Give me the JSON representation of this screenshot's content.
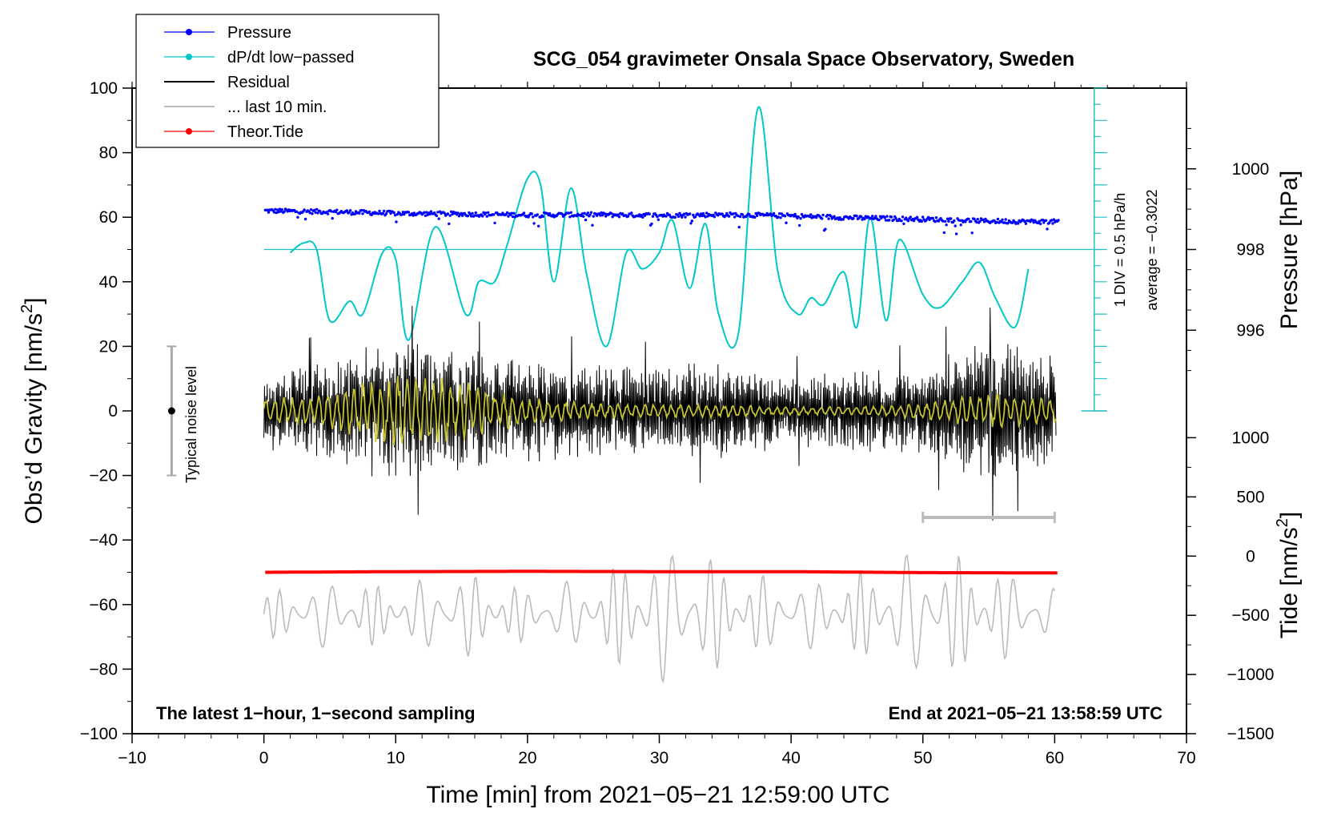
{
  "chart_data": {
    "type": "line",
    "title": "SCG_054 gravimeter Onsala Space Observatory, Sweden",
    "xlabel": "Time [min] from 2021−05−21 12:59:00 UTC",
    "ylabel_left": "Obs’d Gravity [nm/s",
    "ylabel_left_sup": "2",
    "ylabel_left_close": "]",
    "ylabel_right_pressure": "Pressure [hPa]",
    "ylabel_right_tide": "Tide [nm/s",
    "ylabel_right_tide_sup": "2",
    "ylabel_right_tide_close": "]",
    "xlim": [
      -10,
      70
    ],
    "ylim": [
      -100,
      100
    ],
    "x_ticks": [
      {
        "v": -10,
        "label": "−10"
      },
      {
        "v": 0,
        "label": "0"
      },
      {
        "v": 10,
        "label": "10"
      },
      {
        "v": 20,
        "label": "20"
      },
      {
        "v": 30,
        "label": "30"
      },
      {
        "v": 40,
        "label": "40"
      },
      {
        "v": 50,
        "label": "50"
      },
      {
        "v": 60,
        "label": "60"
      },
      {
        "v": 70,
        "label": "70"
      }
    ],
    "y_ticks": [
      {
        "v": 100,
        "label": "100"
      },
      {
        "v": 80,
        "label": "80"
      },
      {
        "v": 60,
        "label": "60"
      },
      {
        "v": 40,
        "label": "40"
      },
      {
        "v": 20,
        "label": "20"
      },
      {
        "v": 0,
        "label": "0"
      },
      {
        "v": -20,
        "label": "−20"
      },
      {
        "v": -40,
        "label": "−40"
      },
      {
        "v": -60,
        "label": "−60"
      },
      {
        "v": -80,
        "label": "−80"
      },
      {
        "v": -100,
        "label": "−100"
      }
    ],
    "pressure_axis": {
      "ticks": [
        {
          "v": 1000,
          "label": "1000"
        },
        {
          "v": 998,
          "label": "998"
        },
        {
          "v": 996,
          "label": "996"
        }
      ],
      "mapping": {
        "hpa": [
          996,
          1000
        ],
        "gravity": [
          25,
          75
        ]
      }
    },
    "tide_axis": {
      "ticks": [
        {
          "v": 1000,
          "label": "1000"
        },
        {
          "v": 500,
          "label": "500"
        },
        {
          "v": 0,
          "label": "0"
        },
        {
          "v": -500,
          "label": "−500"
        },
        {
          "v": -1000,
          "label": "−1000"
        },
        {
          "v": -1500,
          "label": "−1500"
        }
      ],
      "mapping": {
        "tide": [
          -1500,
          1000
        ],
        "gravity": [
          -100,
          -8.3
        ]
      }
    },
    "legend": [
      {
        "label": "Pressure",
        "color": "#0000ff",
        "marker": true
      },
      {
        "label": "dP/dt low−passed",
        "color": "#00c8c8",
        "marker": true
      },
      {
        "label": "Residual",
        "color": "#000000",
        "marker": false
      },
      {
        "label": "... last 10 min.",
        "color": "#bbbbbb",
        "marker": false
      },
      {
        "label": "Theor.Tide",
        "color": "#ff0000",
        "marker": true
      }
    ],
    "dpdt_scale": {
      "label_div": "1 DIV = 0.5 hPa/h",
      "label_avg": "average = −0.3022",
      "x": 63,
      "range": [
        0,
        100
      ],
      "zero_level": 50
    },
    "noise_bar": {
      "label": "Typical noise level",
      "x": -7,
      "center": 0,
      "half_range": 20
    },
    "last10_bar": {
      "x_from": 50,
      "x_to": 60,
      "y": -33
    },
    "notes": {
      "left": "The latest 1−hour, 1−second sampling",
      "right": "End at 2021−05−21 13:58:59 UTC"
    },
    "series": [
      {
        "name": "Pressure",
        "color": "#0000ff",
        "x": [
          0,
          5,
          10,
          15,
          20,
          25,
          30,
          35,
          40,
          45,
          50,
          55,
          60
        ],
        "values": [
          62,
          61.7,
          61.2,
          61,
          60.7,
          60.8,
          60.6,
          60.8,
          60.4,
          59.8,
          59.4,
          58.8,
          58.6
        ]
      },
      {
        "name": "dP/dt low-passed",
        "color": "#00c8c8",
        "x": [
          2,
          3,
          4,
          5,
          6.5,
          7.5,
          9,
          10,
          11,
          13,
          15.3,
          16.3,
          17.5,
          18.5,
          20,
          21,
          22,
          23.3,
          24.5,
          26,
          27.5,
          28.7,
          30,
          31,
          32.3,
          33.5,
          34.5,
          36,
          37.5,
          39,
          40.5,
          41.5,
          42.5,
          44,
          45,
          46,
          47.2,
          48.2,
          50,
          51.3,
          53,
          54.3,
          55.5,
          57,
          58
        ],
        "values": [
          49,
          52,
          50,
          28,
          34,
          30,
          49,
          47,
          22,
          57,
          30,
          40,
          40,
          52,
          72,
          70,
          40,
          69,
          42,
          20,
          49,
          44,
          49,
          59,
          38,
          58,
          30,
          24,
          94,
          43,
          30,
          35,
          33,
          43,
          26,
          60,
          28,
          53,
          36,
          32,
          40,
          46,
          35,
          26,
          44
        ]
      },
      {
        "name": "Residual",
        "color": "#000000",
        "envelope_x": [
          0,
          5,
          10,
          15,
          20,
          25,
          30,
          35,
          40,
          45,
          50,
          55,
          60
        ],
        "envelope_amp": [
          8,
          12,
          16,
          14,
          11,
          11,
          10,
          11,
          8,
          9,
          10,
          17,
          12
        ]
      },
      {
        "name": "Residual (filtered)",
        "color": "#cccc33",
        "envelope_x": [
          0,
          5,
          10,
          15,
          20,
          25,
          30,
          35,
          40,
          45,
          50,
          55,
          60
        ],
        "envelope_amp": [
          3,
          4,
          9,
          7,
          3,
          2,
          1.5,
          1.5,
          1,
          1,
          2,
          4,
          3
        ]
      },
      {
        "name": "Theor.Tide",
        "color": "#ff0000",
        "x": [
          0,
          10,
          20,
          30,
          40,
          50,
          60
        ],
        "values": [
          -50,
          -49.8,
          -49.7,
          -49.8,
          -49.8,
          -50.1,
          -50.2
        ]
      },
      {
        "name": "... last 10 min.",
        "color": "#bbbbbb",
        "envelope_x": [
          0,
          5,
          10,
          15,
          20,
          25,
          30,
          33,
          36,
          40,
          45,
          50,
          55,
          60
        ],
        "envelope_amp": [
          7,
          11,
          9,
          14,
          8,
          12,
          22,
          20,
          14,
          10,
          13,
          21,
          16,
          8
        ],
        "center": -63
      }
    ]
  }
}
